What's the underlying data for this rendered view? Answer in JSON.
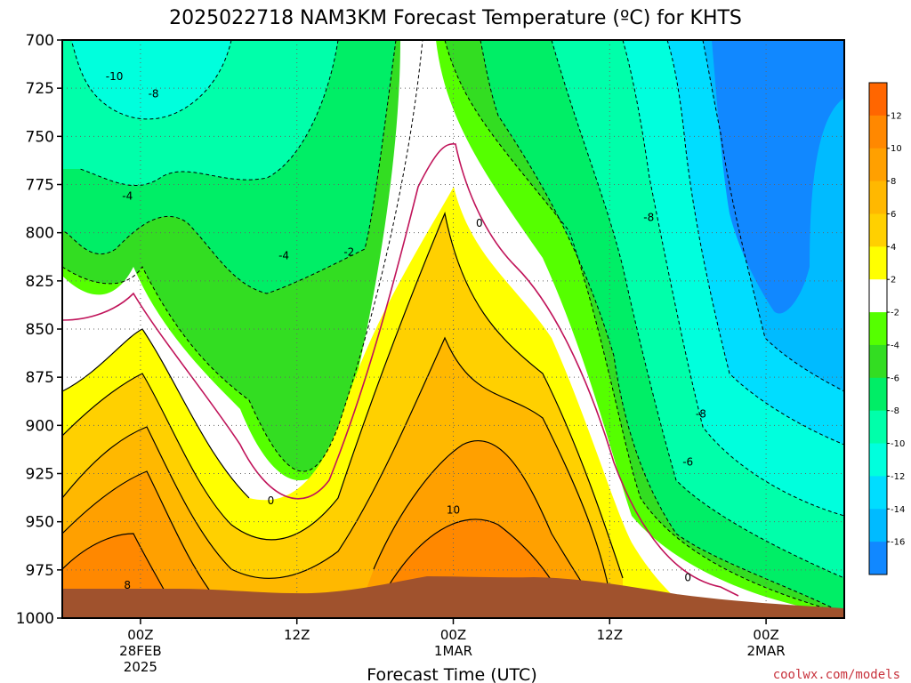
{
  "chart_data": {
    "type": "heatmap",
    "title": "2025022718 NAM3KM Forecast Temperature (ºC) for KHTS",
    "xlabel": "Forecast Time (UTC)",
    "ylabel": "",
    "credit": "coolwx.com/models",
    "y_axis": {
      "scale": "pressure (inverted)",
      "ticks": [
        700,
        725,
        750,
        775,
        800,
        825,
        850,
        875,
        900,
        925,
        950,
        975,
        1000
      ],
      "ylim": [
        1000,
        700
      ]
    },
    "x_axis": {
      "ticks": [
        {
          "hours": 6,
          "lines": [
            "00Z",
            "28FEB",
            "2025"
          ]
        },
        {
          "hours": 18,
          "lines": [
            "12Z"
          ]
        },
        {
          "hours": 30,
          "lines": [
            "00Z",
            "1MAR"
          ]
        },
        {
          "hours": 42,
          "lines": [
            "12Z"
          ]
        },
        {
          "hours": 54,
          "lines": [
            "00Z",
            "2MAR"
          ]
        }
      ],
      "xlim": [
        0,
        60
      ]
    },
    "colorbar": {
      "tick_labels": [
        "12",
        "10",
        "8",
        "6",
        "4",
        "2",
        "-2",
        "-4",
        "-6",
        "-8",
        "-10",
        "-12",
        "-14",
        "-16"
      ],
      "bands": [
        {
          "color": "#ff6600"
        },
        {
          "color": "#ff8800"
        },
        {
          "color": "#ffa000"
        },
        {
          "color": "#ffb800"
        },
        {
          "color": "#ffd000"
        },
        {
          "color": "#ffff00"
        },
        {
          "color": "#ffffff"
        },
        {
          "color": "#55ff00"
        },
        {
          "color": "#33dd22"
        },
        {
          "color": "#00ee66"
        },
        {
          "color": "#00ffaa"
        },
        {
          "color": "#00ffdd"
        },
        {
          "color": "#00ddff"
        },
        {
          "color": "#00bbff"
        },
        {
          "color": "#1188ff"
        }
      ]
    },
    "contour_labels": [
      {
        "text": "-10",
        "t": 4.0,
        "p": 719
      },
      {
        "text": "-8",
        "t": 7.0,
        "p": 728
      },
      {
        "text": "-4",
        "t": 5.0,
        "p": 781
      },
      {
        "text": "-4",
        "t": 17.0,
        "p": 812
      },
      {
        "text": "-2",
        "t": 22.0,
        "p": 810
      },
      {
        "text": "0",
        "t": 16.0,
        "p": 939
      },
      {
        "text": "0",
        "t": 32.0,
        "p": 795
      },
      {
        "text": "10",
        "t": 30.0,
        "p": 944
      },
      {
        "text": "8",
        "t": 5.0,
        "p": 983
      },
      {
        "text": "-8",
        "t": 45.0,
        "p": 792
      },
      {
        "text": "-8",
        "t": 49.0,
        "p": 894
      },
      {
        "text": "-6",
        "t": 48.0,
        "p": 919
      },
      {
        "text": "0",
        "t": 48.0,
        "p": 979
      }
    ]
  }
}
